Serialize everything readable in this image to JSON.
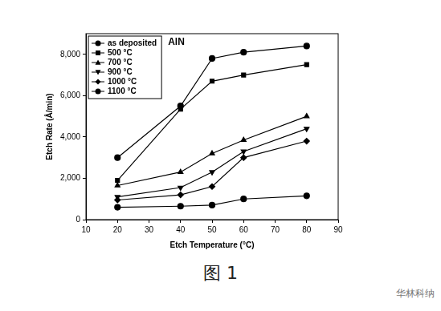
{
  "chart_data": {
    "type": "line",
    "annotations": [
      "AlN"
    ],
    "x_label": "Etch Temperature (°C)",
    "y_label": "Etch Rate (Å/min)",
    "x": [
      20,
      40,
      50,
      60,
      80
    ],
    "series": [
      {
        "name": "as deposited",
        "color": "#000000",
        "marker": "circle",
        "line_style": "solid",
        "values": [
          3000,
          5500,
          7800,
          8100,
          8400
        ]
      },
      {
        "name": "500 °C",
        "color": "#000000",
        "marker": "square",
        "line_style": "solid",
        "values": [
          1900,
          5350,
          6700,
          7000,
          7500
        ]
      },
      {
        "name": "700 °C",
        "color": "#000000",
        "marker": "triangle",
        "line_style": "solid",
        "values": [
          1650,
          2300,
          3200,
          3850,
          5000
        ]
      },
      {
        "name": "900 °C",
        "color": "#000000",
        "marker": "triangle_down",
        "line_style": "solid",
        "values": [
          1100,
          1550,
          2300,
          3300,
          4400
        ]
      },
      {
        "name": "1000 °C",
        "color": "#000000",
        "marker": "diamond",
        "line_style": "solid",
        "values": [
          950,
          1200,
          1600,
          3000,
          3800
        ]
      },
      {
        "name": "1100 °C",
        "color": "#000000",
        "marker": "circle",
        "line_style": "solid",
        "values": [
          600,
          650,
          700,
          1000,
          1150
        ]
      }
    ],
    "xlim": [
      10,
      90
    ],
    "xticks": [
      10,
      20,
      30,
      40,
      50,
      60,
      70,
      80,
      90
    ],
    "ylim": [
      0,
      9000
    ],
    "yticks": [
      0,
      2000,
      4000,
      6000,
      8000
    ],
    "grid": false,
    "legend": "top-left"
  },
  "caption": "图 1",
  "watermark": "华林科纳"
}
